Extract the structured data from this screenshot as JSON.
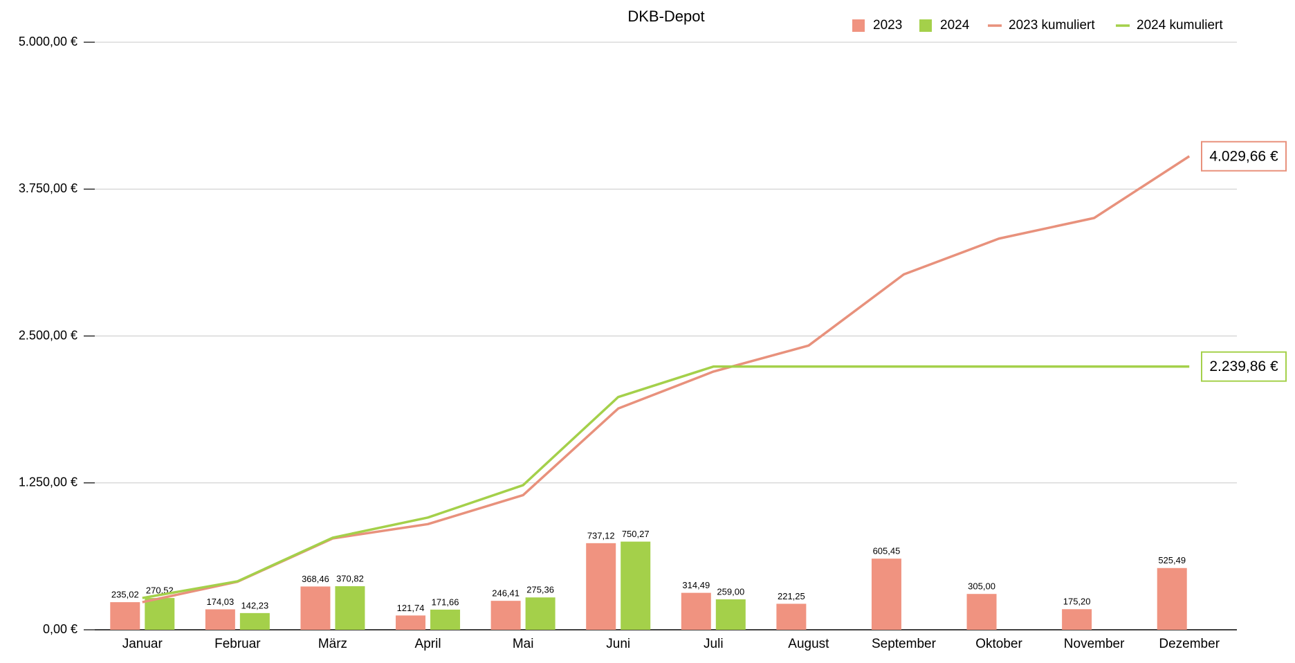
{
  "chart_data": {
    "type": "bar",
    "title": "DKB-Depot",
    "categories": [
      "Januar",
      "Februar",
      "März",
      "April",
      "Mai",
      "Juni",
      "Juli",
      "August",
      "September",
      "Oktober",
      "November",
      "Dezember"
    ],
    "series": [
      {
        "name": "2023",
        "type": "bar",
        "color": "#f09380",
        "values": [
          235.02,
          174.03,
          368.46,
          121.74,
          246.41,
          737.12,
          314.49,
          221.25,
          605.45,
          305.0,
          175.2,
          525.49
        ],
        "value_labels": [
          "235,02",
          "174,03",
          "368,46",
          "121,74",
          "246,41",
          "737,12",
          "314,49",
          "221,25",
          "605,45",
          "305,00",
          "175,20",
          "525,49"
        ]
      },
      {
        "name": "2024",
        "type": "bar",
        "color": "#a4d04a",
        "values": [
          270.52,
          142.23,
          370.82,
          171.66,
          275.36,
          750.27,
          259.0,
          null,
          null,
          null,
          null,
          null
        ],
        "value_labels": [
          "270,52",
          "142,23",
          "370,82",
          "171,66",
          "275,36",
          "750,27",
          "259,00",
          null,
          null,
          null,
          null,
          null
        ]
      },
      {
        "name": "2023 kumuliert",
        "type": "line",
        "color": "#e8917c",
        "values": [
          235.02,
          409.05,
          777.51,
          899.25,
          1145.66,
          1882.78,
          2197.27,
          2418.52,
          3023.97,
          3328.97,
          3504.17,
          4029.66
        ],
        "value_labels": [
          null,
          null,
          null,
          null,
          null,
          null,
          null,
          null,
          null,
          null,
          null,
          "4.029,66 €"
        ]
      },
      {
        "name": "2024 kumuliert",
        "type": "line",
        "color": "#a4d04a",
        "values": [
          270.52,
          412.75,
          783.57,
          955.23,
          1230.59,
          1980.86,
          2239.86,
          2239.86,
          2239.86,
          2239.86,
          2239.86,
          2239.86
        ],
        "value_labels": [
          null,
          null,
          null,
          null,
          null,
          null,
          null,
          null,
          null,
          null,
          null,
          "2.239,86 €"
        ]
      }
    ],
    "ylim": [
      0,
      5000
    ],
    "yticks": [
      {
        "value": 0,
        "label": "0,00 €"
      },
      {
        "value": 1250,
        "label": "1.250,00 €"
      },
      {
        "value": 2500,
        "label": "2.500,00 €"
      },
      {
        "value": 3750,
        "label": "3.750,00 €"
      },
      {
        "value": 5000,
        "label": "5.000,00 €"
      }
    ],
    "grid": true,
    "legend": "top-right"
  }
}
